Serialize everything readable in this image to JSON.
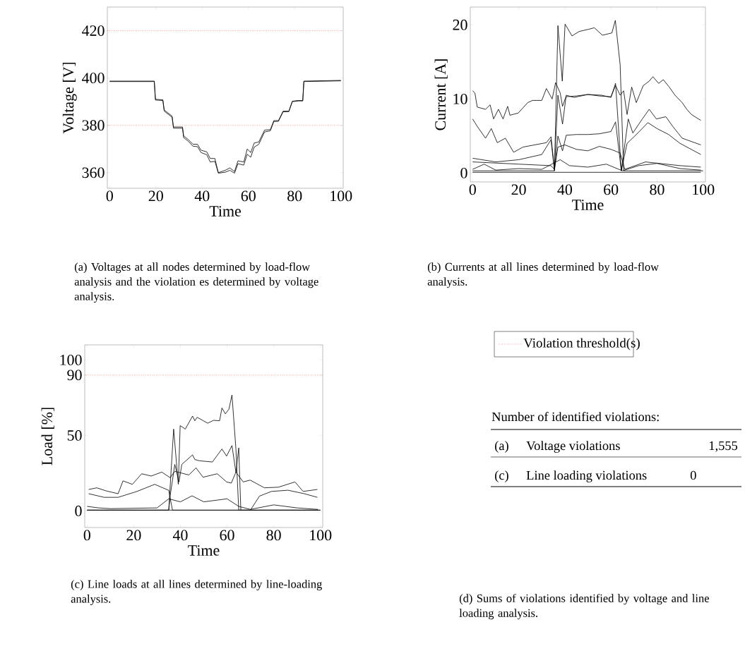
{
  "chart_data": [
    {
      "type": "line",
      "xlabel": "Time",
      "ylabel": "Voltage [V]",
      "xlim": [
        -1,
        101
      ],
      "ylim": [
        353.4,
        430
      ],
      "xticks": [
        0,
        20,
        40,
        60,
        80,
        100
      ],
      "yticks": [
        360,
        380,
        400,
        420
      ],
      "ref_lines": [
        {
          "axis": "y",
          "value": 420,
          "color": "#ff0000",
          "line_style": "dotted"
        },
        {
          "axis": "y",
          "value": 380,
          "color": "#ff0000",
          "line_style": "dotted"
        }
      ],
      "annotations": [
        "(a) Voltages at all nodes determined by load-flow analysis and the violation es determined by voltage analysis."
      ],
      "series": [
        {
          "color": "#000000",
          "x": [
            0,
            19.3,
            19.8,
            23.0,
            23.6,
            27.0,
            27.6,
            31.5,
            32.0,
            34,
            36,
            38,
            39.5,
            42,
            43.5,
            45.5,
            47,
            50,
            52,
            54,
            55.5,
            58,
            59.5,
            61,
            62.5,
            64.5,
            67,
            69.5,
            71,
            73,
            75,
            77.5,
            79,
            81.5,
            83.5,
            84,
            100
          ],
          "values": [
            398.7,
            398.7,
            391,
            390.8,
            386.5,
            383.9,
            379.3,
            379.3,
            375.5,
            374,
            372,
            372,
            369.5,
            368.8,
            366,
            366,
            360,
            361,
            362,
            360.5,
            365,
            364.5,
            370,
            368.5,
            372.5,
            373,
            378,
            378.2,
            382,
            382,
            386,
            386,
            390.2,
            390.5,
            390.5,
            398.7,
            399
          ]
        },
        {
          "color": "#000000",
          "x": [
            0,
            19.3,
            19.8,
            23.0,
            23.6,
            27.0,
            27.6,
            31.5,
            32.0,
            34,
            36,
            38,
            39.5,
            42,
            43.5,
            45.5,
            47,
            50,
            52,
            54,
            55.5,
            58,
            59.5,
            61,
            62.5,
            64.5,
            67,
            69.5,
            71,
            73,
            75,
            77.5,
            79,
            81.5,
            83.5,
            84,
            100
          ],
          "values": [
            398.5,
            398.5,
            390.7,
            390.5,
            386,
            383.4,
            378.8,
            378.8,
            374.8,
            373.3,
            371.2,
            371,
            368.5,
            367.6,
            364.5,
            364.8,
            359.8,
            360.2,
            361,
            359.8,
            363.8,
            363.2,
            367.8,
            366.5,
            370.8,
            372,
            377.2,
            377.7,
            381.6,
            381.7,
            385.7,
            385.8,
            390,
            390.3,
            390.3,
            398.5,
            398.8
          ]
        }
      ]
    },
    {
      "type": "line",
      "xlabel": "Time",
      "ylabel": "Current [A]",
      "xlim": [
        -1,
        101
      ],
      "ylim": [
        -1.2,
        22.4
      ],
      "xticks": [
        0,
        20,
        40,
        60,
        80,
        100
      ],
      "yticks": [
        0,
        10,
        20
      ],
      "annotations": [
        "(b) Currents at all lines determined by load-flow analysis."
      ],
      "series": [
        {
          "color": "#000000",
          "x": [
            0,
            35.5,
            37,
            38.9,
            40.1,
            43.1,
            46.2,
            50.3,
            52.8,
            56.3,
            60.4,
            61.9,
            64,
            65.5,
            100
          ],
          "values": [
            0.3,
            0.3,
            19.9,
            12.4,
            20.1,
            18.5,
            19.1,
            19.4,
            19.6,
            18.6,
            18.9,
            20.6,
            14.6,
            0.3,
            0.3
          ]
        },
        {
          "color": "#000000",
          "x": [
            0,
            1,
            2,
            5.6,
            7.6,
            9.1,
            11.2,
            13.2,
            15.2,
            16.2,
            19.8,
            23.9,
            26,
            30,
            32,
            34.5,
            36,
            38,
            39,
            40.5,
            45,
            50,
            55,
            60,
            62,
            64,
            65.5,
            67,
            69,
            71,
            74,
            76.6,
            78.2,
            80.7,
            82.7,
            85.3,
            87.8,
            90.9,
            92.9,
            94.9,
            99
          ],
          "values": [
            11.1,
            10.8,
            8.9,
            8.6,
            9.2,
            7.3,
            8.6,
            7.3,
            9.0,
            7.8,
            8.1,
            9.5,
            9.8,
            9.8,
            11.4,
            10,
            12.2,
            10.8,
            9.0,
            10.3,
            10.4,
            10.6,
            10.4,
            10.3,
            11.8,
            10.5,
            11.1,
            7.9,
            11.6,
            9.5,
            11.8,
            12.4,
            13,
            12.1,
            12.6,
            11.6,
            10.5,
            9.5,
            8.6,
            7.9,
            7.1
          ]
        },
        {
          "color": "#000000",
          "x": [
            0,
            2,
            5.6,
            8.1,
            10.7,
            14.2,
            17.8,
            21.8,
            26.9,
            32,
            34,
            35.5,
            37,
            39,
            40.6,
            44,
            50,
            56,
            60,
            62,
            64.5,
            67.5,
            69.5,
            73.6,
            76.6,
            79.7,
            83.8,
            86.8,
            90.9,
            99
          ],
          "values": [
            7.3,
            6.3,
            4.7,
            6.0,
            4.1,
            4.7,
            2.8,
            3.5,
            3.8,
            4.1,
            4.9,
            0.6,
            10.5,
            6.6,
            10.5,
            10.2,
            10.6,
            10.5,
            10.2,
            12.1,
            0.3,
            7.3,
            5.4,
            7.3,
            8.6,
            7.3,
            7.6,
            6.3,
            4.7,
            3.8
          ]
        },
        {
          "color": "#000000",
          "x": [
            0,
            10,
            20,
            30,
            34,
            35.5,
            37,
            39,
            40.6,
            45,
            50,
            55,
            60,
            62,
            64.5,
            67,
            72,
            76,
            80,
            85,
            90,
            99
          ],
          "values": [
            2.0,
            1.5,
            1.8,
            2.5,
            4.5,
            0.3,
            5.0,
            3.0,
            5.1,
            5.2,
            5.2,
            5.3,
            5.6,
            6.9,
            0.3,
            4.0,
            5.5,
            6.8,
            6.0,
            5.2,
            4.0,
            2.5
          ]
        },
        {
          "color": "#000000",
          "x": [
            0,
            20,
            34,
            35.5,
            37,
            40,
            45,
            50,
            55,
            60,
            64,
            66,
            75,
            90,
            99
          ],
          "values": [
            1.5,
            1.2,
            1.0,
            0.5,
            3.5,
            3.8,
            3.2,
            3.0,
            3.6,
            3.2,
            2.7,
            0.5,
            1.5,
            1.0,
            0.8
          ]
        },
        {
          "color": "#000000",
          "x": [
            0,
            5,
            10,
            20,
            30,
            38,
            42,
            50,
            58,
            65,
            72,
            80,
            90,
            99
          ],
          "values": [
            0.5,
            1.2,
            0.4,
            0.6,
            0.5,
            1.8,
            1.0,
            0.8,
            1.2,
            0.3,
            1.0,
            1.3,
            0.6,
            0.4
          ]
        },
        {
          "color": "#000000",
          "x": [
            0,
            99
          ],
          "values": [
            0.1,
            0.1
          ]
        }
      ]
    },
    {
      "type": "line",
      "xlabel": "Time",
      "ylabel": "Load [%]",
      "xlim": [
        -1,
        101
      ],
      "ylim": [
        -11,
        110
      ],
      "xticks": [
        0,
        20,
        40,
        60,
        80,
        100
      ],
      "yticks": [
        0,
        50,
        90,
        100
      ],
      "ref_lines": [
        {
          "axis": "y",
          "value": 90,
          "color": "#ff0000",
          "line_style": "dotted"
        }
      ],
      "annotations": [
        "(c) Line loads at all lines determined by line-loading analysis."
      ],
      "series": [
        {
          "color": "#000000",
          "x": [
            0,
            35,
            37.1,
            39.1,
            39.9,
            42.1,
            45.2,
            46.2,
            47.2,
            51.7,
            54.2,
            56.8,
            57.8,
            59.3,
            60.8,
            62.1,
            63.8,
            65,
            100
          ],
          "values": [
            0.5,
            0.5,
            54.2,
            17.6,
            56.5,
            54.2,
            62.8,
            59.7,
            62,
            58.1,
            60,
            59.7,
            68.2,
            64.3,
            67.4,
            76.8,
            41,
            0.5,
            0.5
          ]
        },
        {
          "color": "#000000",
          "x": [
            0,
            35,
            35.6,
            37.6,
            39.4,
            40.6,
            45.2,
            46.2,
            48.2,
            53.7,
            57.8,
            59.8,
            62.1,
            63.8,
            65,
            65.9,
            100
          ],
          "values": [
            0.5,
            0.5,
            9.8,
            30.8,
            19.2,
            30.8,
            37.1,
            34,
            33.2,
            32.4,
            41,
            36.3,
            43.3,
            25.4,
            41.7,
            0.5,
            0.5
          ]
        },
        {
          "color": "#000000",
          "x": [
            0.7,
            4.2,
            8.3,
            13.3,
            15.4,
            19.4,
            23.4,
            27.5,
            32,
            35.6,
            37.6,
            43.6,
            46.7,
            49.7,
            55.8,
            59.8,
            61.8,
            63.8,
            66.9,
            69.9,
            76,
            82,
            89.1,
            92.6,
            98.7
          ],
          "values": [
            14.2,
            15.3,
            13.2,
            11.4,
            19.9,
            17.6,
            24.6,
            23.1,
            25.7,
            22,
            26.2,
            23.8,
            28.5,
            22.3,
            24.6,
            19.2,
            18.4,
            25.7,
            19.2,
            20.4,
            15.3,
            15.7,
            19.2,
            12.9,
            14.2
          ]
        },
        {
          "color": "#000000",
          "x": [
            0.7,
            7.3,
            13.3,
            21.4,
            29,
            35,
            36.6,
            70,
            73.9,
            79,
            86.1,
            93.1,
            98.7
          ],
          "values": [
            11.4,
            9,
            9,
            12.9,
            17.6,
            13.6,
            0.5,
            0.5,
            9.8,
            12.9,
            13.7,
            11.4,
            9
          ]
        },
        {
          "color": "#000000",
          "x": [
            0,
            5,
            10,
            30,
            35,
            40,
            45,
            50,
            55,
            60,
            65,
            70,
            80,
            90,
            99
          ],
          "values": [
            3,
            2,
            1.5,
            2,
            8,
            6,
            10,
            6,
            7,
            8,
            3,
            1,
            4,
            2,
            1
          ]
        },
        {
          "color": "#000000",
          "x": [
            0,
            99
          ],
          "values": [
            0.5,
            0.5
          ]
        }
      ]
    },
    {
      "type": "other",
      "categories": [
        "Voltage violations",
        "Line loading violations"
      ],
      "value_labels": [
        "1,555",
        "0"
      ],
      "annotations": [
        "Violation threshold(s)",
        "Number of identified violations:",
        "(a)",
        "(c)",
        "(d) Sums of violations identified by voltage and line loading analysis."
      ]
    }
  ]
}
